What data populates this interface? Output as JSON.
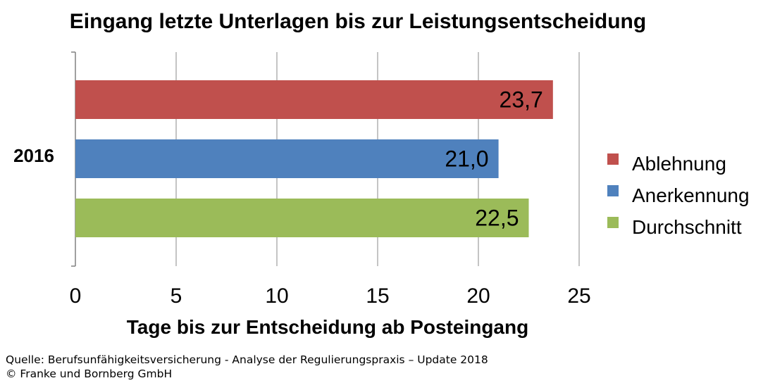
{
  "chart_data": {
    "type": "bar",
    "orientation": "horizontal",
    "title": "Eingang letzte Unterlagen bis zur Leistungsentscheidung",
    "xlabel": "Tage bis zur Entscheidung ab Posteingang",
    "ylabel": "",
    "categories": [
      "2016"
    ],
    "xlim": [
      0,
      25
    ],
    "xticks": [
      0,
      5,
      10,
      15,
      20,
      25
    ],
    "grid": true,
    "legend_position": "right",
    "series": [
      {
        "name": "Ablehnung",
        "values": [
          23.7
        ],
        "value_label": "23,7",
        "color": "#C0504D"
      },
      {
        "name": "Anerkennung",
        "values": [
          21.0
        ],
        "value_label": "21,0",
        "color": "#4F81BD"
      },
      {
        "name": "Durchschnitt",
        "values": [
          22.5
        ],
        "value_label": "22,5",
        "color": "#9BBB59"
      }
    ]
  },
  "footer": {
    "source": "Quelle: Berufsunfähigkeitsversicherung - Analyse der Regulierungspraxis – Update 2018",
    "copyright": "© Franke und Bornberg GmbH"
  }
}
